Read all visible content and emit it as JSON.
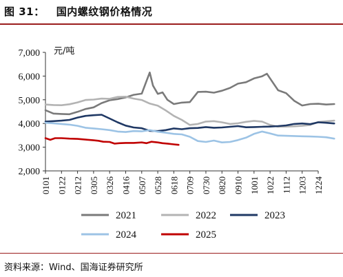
{
  "figure": {
    "title": "图 31：   国内螺纹钢价格情况",
    "source": "资料来源：Wind、国海证券研究所"
  },
  "chart_data": {
    "type": "line",
    "ylabel": "元/吨",
    "ylim": [
      2000,
      7000
    ],
    "yticks": [
      "2,000",
      "3,000",
      "4,000",
      "5,000",
      "6,000",
      "7,000"
    ],
    "x_ticks": [
      "0101",
      "0122",
      "0212",
      "0305",
      "0326",
      "0416",
      "0507",
      "0528",
      "0618",
      "0709",
      "0730",
      "0820",
      "0910",
      "1001",
      "1022",
      "1112",
      "1203",
      "1224"
    ],
    "legend_position": "bottom",
    "series": [
      {
        "name": "2021",
        "color": "#7a7a7a",
        "values": [
          [
            0,
            4560
          ],
          [
            0.5,
            4420
          ],
          [
            1,
            4400
          ],
          [
            1.5,
            4390
          ],
          [
            2,
            4490
          ],
          [
            2.5,
            4610
          ],
          [
            3,
            4680
          ],
          [
            3.5,
            4860
          ],
          [
            4,
            4980
          ],
          [
            4.5,
            5030
          ],
          [
            5,
            5100
          ],
          [
            5.5,
            5210
          ],
          [
            6,
            5260
          ],
          [
            6.3,
            5800
          ],
          [
            6.5,
            6150
          ],
          [
            6.7,
            5600
          ],
          [
            7,
            5250
          ],
          [
            7.3,
            5310
          ],
          [
            7.6,
            5000
          ],
          [
            8,
            4820
          ],
          [
            8.5,
            4880
          ],
          [
            9,
            4900
          ],
          [
            9.5,
            5330
          ],
          [
            10,
            5340
          ],
          [
            10.5,
            5300
          ],
          [
            11,
            5380
          ],
          [
            11.5,
            5500
          ],
          [
            12,
            5680
          ],
          [
            12.5,
            5740
          ],
          [
            13,
            5900
          ],
          [
            13.5,
            5990
          ],
          [
            13.8,
            6100
          ],
          [
            14,
            5900
          ],
          [
            14.5,
            5400
          ],
          [
            15,
            5280
          ],
          [
            15.5,
            4960
          ],
          [
            16,
            4760
          ],
          [
            16.5,
            4820
          ],
          [
            17,
            4830
          ],
          [
            17.5,
            4800
          ],
          [
            18,
            4820
          ]
        ]
      },
      {
        "name": "2022",
        "color": "#b3b3b3",
        "values": [
          [
            0,
            4800
          ],
          [
            0.5,
            4780
          ],
          [
            1,
            4770
          ],
          [
            1.5,
            4810
          ],
          [
            2,
            4890
          ],
          [
            2.5,
            4990
          ],
          [
            3,
            5010
          ],
          [
            3.5,
            5050
          ],
          [
            4,
            5040
          ],
          [
            4.5,
            5120
          ],
          [
            5,
            5130
          ],
          [
            5.5,
            5050
          ],
          [
            6,
            4990
          ],
          [
            6.5,
            4840
          ],
          [
            7,
            4750
          ],
          [
            7.5,
            4550
          ],
          [
            8,
            4320
          ],
          [
            8.5,
            4150
          ],
          [
            9,
            3940
          ],
          [
            9.5,
            3980
          ],
          [
            10,
            4080
          ],
          [
            10.5,
            4100
          ],
          [
            11,
            4050
          ],
          [
            11.5,
            3980
          ],
          [
            12,
            4010
          ],
          [
            12.5,
            4070
          ],
          [
            13,
            4110
          ],
          [
            13.5,
            4080
          ],
          [
            14,
            3940
          ],
          [
            14.5,
            3860
          ],
          [
            15,
            3870
          ],
          [
            15.5,
            3880
          ],
          [
            16,
            3900
          ],
          [
            16.5,
            3940
          ],
          [
            17,
            4060
          ],
          [
            17.5,
            4090
          ],
          [
            18,
            4120
          ]
        ]
      },
      {
        "name": "2023",
        "color": "#1f3864",
        "values": [
          [
            0,
            4080
          ],
          [
            0.5,
            4100
          ],
          [
            1,
            4120
          ],
          [
            1.5,
            4150
          ],
          [
            2,
            4250
          ],
          [
            2.5,
            4320
          ],
          [
            3,
            4350
          ],
          [
            3.5,
            4370
          ],
          [
            4,
            4210
          ],
          [
            4.5,
            4050
          ],
          [
            5,
            3910
          ],
          [
            5.5,
            3830
          ],
          [
            6,
            3800
          ],
          [
            6.5,
            3690
          ],
          [
            7,
            3680
          ],
          [
            7.5,
            3720
          ],
          [
            8,
            3790
          ],
          [
            8.5,
            3760
          ],
          [
            9,
            3800
          ],
          [
            9.5,
            3810
          ],
          [
            10,
            3850
          ],
          [
            10.5,
            3820
          ],
          [
            11,
            3830
          ],
          [
            11.5,
            3860
          ],
          [
            12,
            3890
          ],
          [
            12.5,
            3840
          ],
          [
            13,
            3850
          ],
          [
            13.5,
            3860
          ],
          [
            14,
            3870
          ],
          [
            14.5,
            3890
          ],
          [
            15,
            3920
          ],
          [
            15.5,
            3980
          ],
          [
            16,
            4000
          ],
          [
            16.5,
            3970
          ],
          [
            17,
            4050
          ],
          [
            17.5,
            4030
          ],
          [
            18,
            4000
          ]
        ]
      },
      {
        "name": "2024",
        "color": "#9cc3e5",
        "values": [
          [
            0,
            4030
          ],
          [
            0.5,
            4010
          ],
          [
            1,
            3980
          ],
          [
            1.5,
            3950
          ],
          [
            2,
            3900
          ],
          [
            2.5,
            3820
          ],
          [
            3,
            3790
          ],
          [
            3.5,
            3760
          ],
          [
            4,
            3720
          ],
          [
            4.5,
            3660
          ],
          [
            5,
            3640
          ],
          [
            5.5,
            3680
          ],
          [
            6,
            3670
          ],
          [
            6.5,
            3720
          ],
          [
            7,
            3650
          ],
          [
            7.5,
            3610
          ],
          [
            8,
            3560
          ],
          [
            8.5,
            3540
          ],
          [
            9,
            3440
          ],
          [
            9.5,
            3260
          ],
          [
            10,
            3220
          ],
          [
            10.5,
            3280
          ],
          [
            11,
            3200
          ],
          [
            11.5,
            3220
          ],
          [
            12,
            3300
          ],
          [
            12.5,
            3400
          ],
          [
            13,
            3560
          ],
          [
            13.5,
            3660
          ],
          [
            14,
            3580
          ],
          [
            14.5,
            3490
          ],
          [
            15,
            3480
          ],
          [
            15.5,
            3470
          ],
          [
            16,
            3460
          ],
          [
            16.5,
            3450
          ],
          [
            17,
            3440
          ],
          [
            17.5,
            3420
          ],
          [
            18,
            3360
          ]
        ]
      },
      {
        "name": "2025",
        "color": "#c00000",
        "values": [
          [
            0,
            3380
          ],
          [
            0.3,
            3310
          ],
          [
            0.6,
            3380
          ],
          [
            1,
            3380
          ],
          [
            1.5,
            3360
          ],
          [
            2,
            3350
          ],
          [
            2.5,
            3320
          ],
          [
            3,
            3290
          ],
          [
            3.3,
            3270
          ],
          [
            3.6,
            3230
          ],
          [
            4,
            3220
          ],
          [
            4.3,
            3150
          ],
          [
            4.6,
            3170
          ],
          [
            5,
            3180
          ],
          [
            5.5,
            3180
          ],
          [
            6,
            3200
          ],
          [
            6.3,
            3170
          ],
          [
            6.6,
            3230
          ],
          [
            7,
            3200
          ],
          [
            7.3,
            3170
          ],
          [
            7.6,
            3150
          ],
          [
            8,
            3120
          ],
          [
            8.3,
            3100
          ]
        ]
      }
    ]
  }
}
